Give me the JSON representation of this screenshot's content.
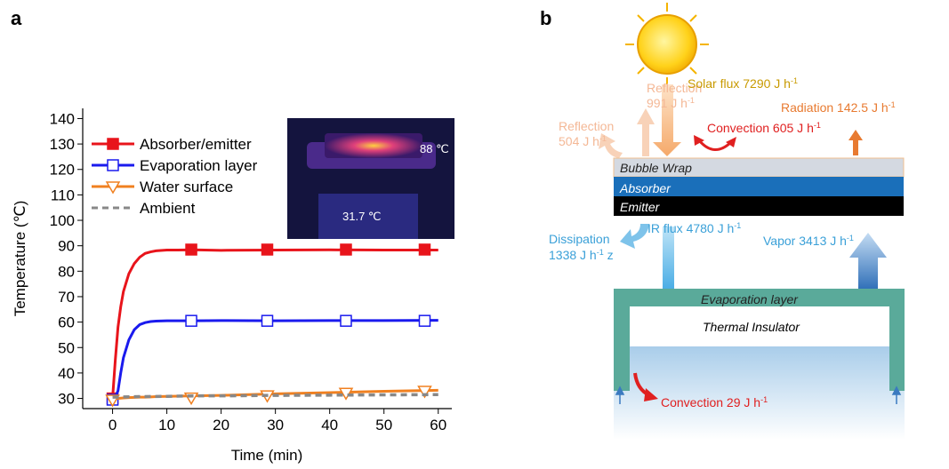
{
  "panel_labels": [
    "a",
    "b"
  ],
  "chart_data": {
    "type": "line",
    "x_label": "Time (min)",
    "y_label": "Temperature (℃)",
    "xlim": [
      -5.5,
      62.5
    ],
    "ylim": [
      26,
      144
    ],
    "xticks": [
      0,
      10,
      20,
      30,
      40,
      50,
      60
    ],
    "yticks": [
      30,
      40,
      50,
      60,
      70,
      80,
      90,
      100,
      110,
      120,
      130,
      140
    ],
    "legend": "upper left",
    "inset_labels": [
      "88 ℃",
      "31.7 ℃"
    ],
    "series": [
      {
        "name": "Absorber/emitter",
        "color": "#e8141b",
        "marker": "filled-square",
        "dash": false,
        "x": [
          0,
          0.5,
          1,
          1.5,
          2,
          3,
          4,
          5,
          6,
          7,
          8,
          10,
          12,
          15,
          20,
          30,
          40,
          50,
          60
        ],
        "values": [
          30,
          45,
          58,
          66,
          72,
          79,
          83,
          85.5,
          87,
          87.6,
          88,
          88.3,
          88.3,
          88.4,
          88.2,
          88.3,
          88.4,
          88.3,
          88.3
        ],
        "markers": {
          "x": [
            0,
            14.5,
            28.5,
            43,
            57.5
          ],
          "values": [
            30,
            88.5,
            88.5,
            88.5,
            88.5
          ]
        }
      },
      {
        "name": "Evaporation layer",
        "color": "#1a1aee",
        "marker": "open-square",
        "dash": false,
        "x": [
          0,
          0.5,
          1,
          1.5,
          2,
          3,
          4,
          5,
          6,
          7,
          8,
          10,
          12,
          15,
          20,
          30,
          40,
          50,
          60
        ],
        "values": [
          30,
          30.5,
          33,
          40,
          46,
          53,
          57,
          59,
          59.8,
          60.2,
          60.4,
          60.5,
          60.5,
          60.5,
          60.6,
          60.5,
          60.6,
          60.6,
          60.7
        ],
        "markers": {
          "x": [
            0,
            14.5,
            28.5,
            43,
            57.5
          ],
          "values": [
            29.5,
            60.5,
            60.5,
            60.5,
            60.5
          ]
        }
      },
      {
        "name": "Water surface",
        "color": "#f08020",
        "marker": "open-triangle-down",
        "dash": false,
        "x": [
          0,
          0.5,
          1,
          1.5,
          2,
          3,
          4,
          5,
          6,
          7,
          8,
          10,
          12,
          15,
          20,
          30,
          40,
          50,
          60
        ],
        "values": [
          30,
          30,
          30,
          30.1,
          30.2,
          30.3,
          30.4,
          30.5,
          30.5,
          30.6,
          30.7,
          30.8,
          30.9,
          31,
          31.2,
          31.8,
          32.3,
          32.8,
          33.2
        ],
        "markers": {
          "x": [
            0,
            14.5,
            28.5,
            43,
            57.5
          ],
          "values": [
            29.5,
            30.3,
            31.2,
            32.2,
            33
          ]
        }
      },
      {
        "name": "Ambient",
        "color": "#888888",
        "marker": "none",
        "dash": true,
        "x": [
          0,
          5,
          10,
          15,
          20,
          30,
          40,
          50,
          60
        ],
        "values": [
          30.5,
          30.7,
          30.8,
          31,
          31,
          31.2,
          31.3,
          31.4,
          31.5
        ]
      }
    ]
  },
  "diagram": {
    "labels": [
      {
        "text": "Reflection"
      },
      {
        "text": "991 J h",
        "sup": "-1"
      },
      {
        "text": "Solar flux 7290 J h",
        "sup": "-1"
      },
      {
        "text": "Reflection"
      },
      {
        "text": "504 J h",
        "sup": "-1"
      },
      {
        "text": "Convection 605 J h",
        "sup": "-1"
      },
      {
        "text": "Radiation 142.5 J h",
        "sup": "-1"
      },
      {
        "text": "Bubble Wrap"
      },
      {
        "text": "Absorber"
      },
      {
        "text": "Emitter"
      },
      {
        "text": "IR flux 4780 J h",
        "sup": "-1"
      },
      {
        "text": "Dissipation"
      },
      {
        "text": "1338 J h",
        "sup": "-1",
        "suffix": " z"
      },
      {
        "text": "Vapor 3413 J h",
        "sup": "-1"
      },
      {
        "text": "Evaporation layer"
      },
      {
        "text": "Thermal Insulator"
      },
      {
        "text": "Convection 29 J h",
        "sup": "-1"
      }
    ]
  }
}
